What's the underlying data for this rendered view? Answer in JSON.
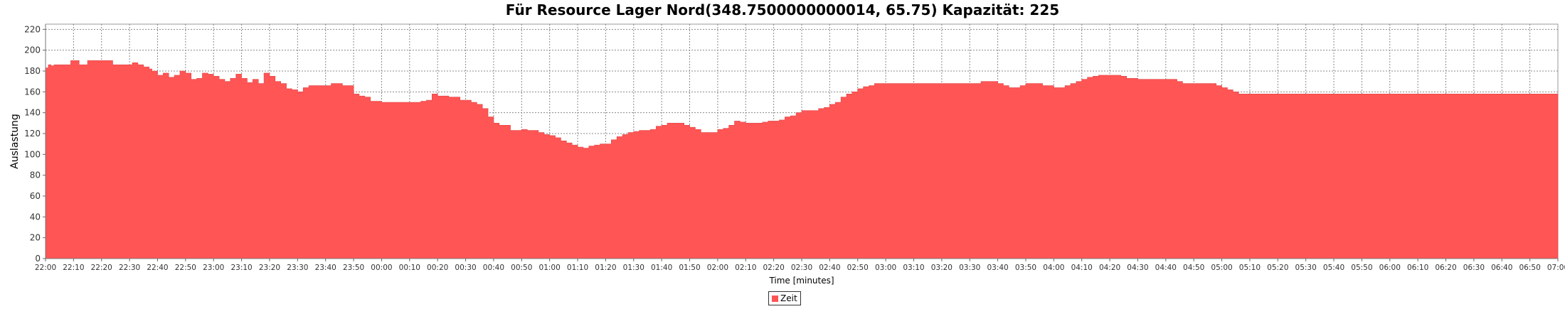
{
  "chart_data": {
    "type": "area",
    "title": "Für Resource Lager Nord(348.7500000000014, 65.75) Kapazität: 225",
    "xlabel": "Time [minutes]",
    "ylabel": "Auslastung",
    "ylim": [
      0,
      225
    ],
    "yticks": [
      0,
      20,
      40,
      60,
      80,
      100,
      120,
      140,
      160,
      180,
      200,
      220
    ],
    "xlim": [
      0,
      540
    ],
    "xtick_labels": [
      "22:00",
      "22:10",
      "22:20",
      "22:30",
      "22:40",
      "22:50",
      "23:00",
      "23:10",
      "23:20",
      "23:30",
      "23:40",
      "23:50",
      "00:00",
      "00:10",
      "00:20",
      "00:30",
      "00:40",
      "00:50",
      "01:00",
      "01:10",
      "01:20",
      "01:30",
      "01:40",
      "01:50",
      "02:00",
      "02:10",
      "02:20",
      "02:30",
      "02:40",
      "02:50",
      "03:00",
      "03:10",
      "03:20",
      "03:30",
      "03:40",
      "03:50",
      "04:00",
      "04:10",
      "04:20",
      "04:30",
      "04:40",
      "04:50",
      "05:00",
      "05:10",
      "05:20",
      "05:30",
      "05:40",
      "05:50",
      "06:00",
      "06:10",
      "06:20",
      "06:30",
      "06:40",
      "06:50",
      "07:00"
    ],
    "grid": true,
    "legend_position": "bottom-center",
    "series": [
      {
        "name": "Zeit",
        "color": "#ff5555",
        "x": [
          0,
          1,
          2,
          3,
          5,
          9,
          10,
          12,
          14,
          15,
          18,
          24,
          30,
          31,
          33,
          35,
          37,
          38,
          40,
          42,
          44,
          46,
          48,
          50,
          52,
          54,
          56,
          58,
          60,
          62,
          64,
          66,
          68,
          70,
          72,
          74,
          76,
          78,
          80,
          82,
          84,
          86,
          88,
          90,
          92,
          94,
          96,
          98,
          100,
          102,
          104,
          106,
          108,
          110,
          112,
          114,
          116,
          118,
          120,
          122,
          124,
          126,
          128,
          130,
          132,
          134,
          136,
          138,
          140,
          142,
          144,
          146,
          148,
          150,
          152,
          154,
          156,
          158,
          160,
          162,
          164,
          166,
          168,
          170,
          172,
          174,
          176,
          178,
          180,
          182,
          184,
          186,
          188,
          190,
          192,
          194,
          196,
          198,
          200,
          202,
          204,
          206,
          208,
          210,
          212,
          214,
          216,
          218,
          220,
          222,
          224,
          226,
          228,
          230,
          232,
          234,
          236,
          238,
          240,
          242,
          244,
          246,
          248,
          250,
          252,
          254,
          256,
          258,
          260,
          262,
          264,
          266,
          268,
          270,
          272,
          274,
          276,
          278,
          280,
          282,
          284,
          286,
          288,
          290,
          292,
          294,
          296,
          298,
          300,
          302,
          304,
          306,
          308,
          310,
          312,
          314,
          316,
          318,
          320,
          322,
          324,
          326,
          328,
          330,
          332,
          334,
          336,
          338,
          340,
          342,
          344,
          346,
          348,
          350,
          352,
          354,
          356,
          358,
          360,
          362,
          364,
          366,
          368,
          370,
          372,
          374,
          376,
          378,
          380,
          382,
          384,
          386,
          388,
          390,
          392,
          394,
          396,
          398,
          400,
          402,
          404,
          406,
          408,
          410,
          412,
          414,
          416,
          418,
          420,
          422,
          424,
          426,
          428,
          430,
          432,
          434,
          436,
          438,
          440,
          442,
          444,
          446,
          448,
          450,
          452,
          454,
          456,
          458,
          460,
          462,
          464,
          466,
          468,
          470,
          472,
          474,
          476,
          478,
          480,
          482,
          484,
          486,
          488,
          490,
          492,
          494,
          496,
          498,
          500,
          502,
          504,
          506,
          508,
          510,
          512,
          514,
          516,
          518,
          520,
          522,
          524,
          526,
          528,
          530,
          532,
          534,
          536,
          538,
          540
        ],
        "values": [
          183,
          186,
          185,
          186,
          186,
          190,
          190,
          186,
          186,
          190,
          190,
          186,
          186,
          188,
          186,
          184,
          182,
          180,
          176,
          178,
          174,
          176,
          180,
          178,
          172,
          173,
          178,
          177,
          175,
          172,
          170,
          173,
          177,
          173,
          169,
          172,
          168,
          178,
          175,
          170,
          168,
          163,
          162,
          160,
          164,
          166,
          166,
          166,
          166,
          168,
          168,
          166,
          166,
          158,
          156,
          155,
          151,
          151,
          150,
          150,
          150,
          150,
          150,
          150,
          150,
          151,
          152,
          158,
          156,
          156,
          155,
          155,
          152,
          152,
          150,
          148,
          144,
          136,
          130,
          128,
          128,
          123,
          123,
          124,
          123,
          123,
          121,
          119,
          118,
          116,
          113,
          111,
          109,
          107,
          106,
          108,
          109,
          110,
          110,
          114,
          117,
          119,
          121,
          122,
          123,
          123,
          124,
          127,
          128,
          130,
          130,
          130,
          128,
          126,
          124,
          121,
          121,
          121,
          124,
          125,
          128,
          132,
          131,
          130,
          130,
          130,
          131,
          132,
          132,
          133,
          136,
          137,
          140,
          142,
          142,
          142,
          144,
          145,
          148,
          150,
          155,
          158,
          160,
          163,
          165,
          166,
          168,
          168,
          168,
          168,
          168,
          168,
          168,
          168,
          168,
          168,
          168,
          168,
          168,
          168,
          168,
          168,
          168,
          168,
          168,
          170,
          170,
          170,
          168,
          166,
          164,
          164,
          166,
          168,
          168,
          168,
          166,
          166,
          164,
          164,
          166,
          168,
          170,
          172,
          174,
          175,
          176,
          176,
          176,
          176,
          175,
          173,
          173,
          172,
          172,
          172,
          172,
          172,
          172,
          172,
          170,
          168,
          168,
          168,
          168,
          168,
          168,
          166,
          164,
          162,
          160,
          158,
          158,
          158,
          158,
          158,
          158,
          158,
          158,
          158,
          158,
          158,
          158,
          158,
          158,
          158,
          158,
          158,
          158,
          158,
          158,
          158,
          158,
          158,
          158,
          158,
          158,
          158,
          158,
          158,
          158,
          158,
          158,
          158,
          158,
          158,
          158,
          158,
          158,
          158,
          158,
          158,
          158,
          158,
          158,
          158,
          158,
          158,
          158,
          158,
          158,
          158,
          158,
          158,
          158,
          158,
          158,
          158,
          158
        ]
      }
    ]
  }
}
